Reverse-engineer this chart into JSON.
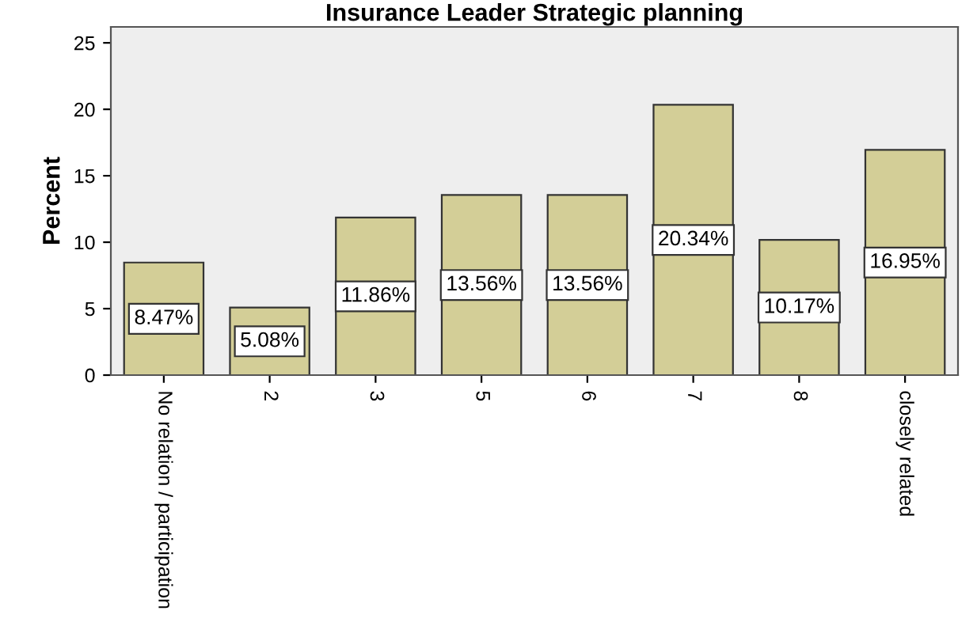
{
  "chart_data": {
    "type": "bar",
    "title": "Insurance Leader Strategic planning",
    "ylabel": "Percent",
    "categories": [
      "No relation / participation",
      "2",
      "3",
      "5",
      "6",
      "7",
      "8",
      "closely related"
    ],
    "values": [
      8.47,
      5.08,
      11.86,
      13.56,
      13.56,
      20.34,
      10.17,
      16.95
    ],
    "value_labels": [
      "8.47%",
      "5.08%",
      "11.86%",
      "13.56%",
      "13.56%",
      "20.34%",
      "10.17%",
      "16.95%"
    ],
    "color": "#d3ce97",
    "ylim": [
      0,
      26.2
    ],
    "yticks": [
      0,
      5,
      10,
      15,
      20,
      25
    ],
    "grid": false
  }
}
